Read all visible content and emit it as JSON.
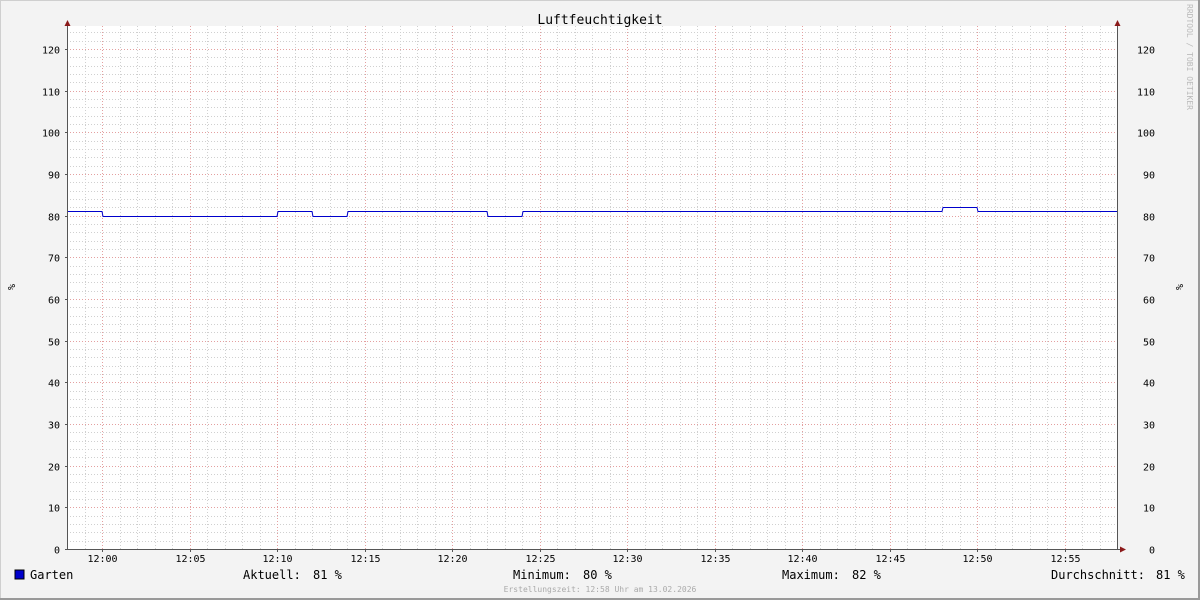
{
  "chart_data": {
    "type": "line",
    "title": "Luftfeuchtigkeit",
    "ylabel": "%",
    "ylabel_right": "%",
    "ylim": [
      0,
      125.5
    ],
    "yticks": [
      0,
      10,
      20,
      30,
      40,
      50,
      60,
      70,
      80,
      90,
      100,
      110,
      120
    ],
    "xlim": [
      "11:58",
      "12:58"
    ],
    "xticks": [
      "12:00",
      "12:05",
      "12:10",
      "12:15",
      "12:20",
      "12:25",
      "12:30",
      "12:35",
      "12:40",
      "12:45",
      "12:50",
      "12:55"
    ],
    "grid": true,
    "series": [
      {
        "name": "Garten",
        "color": "#0000cc",
        "step": true,
        "points": [
          [
            "11:58",
            81
          ],
          [
            "12:00",
            80
          ],
          [
            "12:10",
            81
          ],
          [
            "12:12",
            80
          ],
          [
            "12:14",
            81
          ],
          [
            "12:22",
            80
          ],
          [
            "12:24",
            81
          ],
          [
            "12:48",
            82
          ],
          [
            "12:50",
            81
          ],
          [
            "12:58",
            81
          ]
        ]
      }
    ],
    "legend": {
      "position": "bottom",
      "entries": [
        {
          "label": "Garten",
          "color": "#0000cc"
        }
      ],
      "stats": [
        {
          "label": "Aktuell:",
          "value": "81 %"
        },
        {
          "label": "Minimum:",
          "value": "80 %"
        },
        {
          "label": "Maximum:",
          "value": "82 %"
        },
        {
          "label": "Durchschnitt:",
          "value": "81 %"
        }
      ]
    },
    "footer": "Erstellungszeit: 12:58 Uhr am 13.02.2026",
    "watermark": "RRDTOOL / TOBI OETIKER"
  }
}
